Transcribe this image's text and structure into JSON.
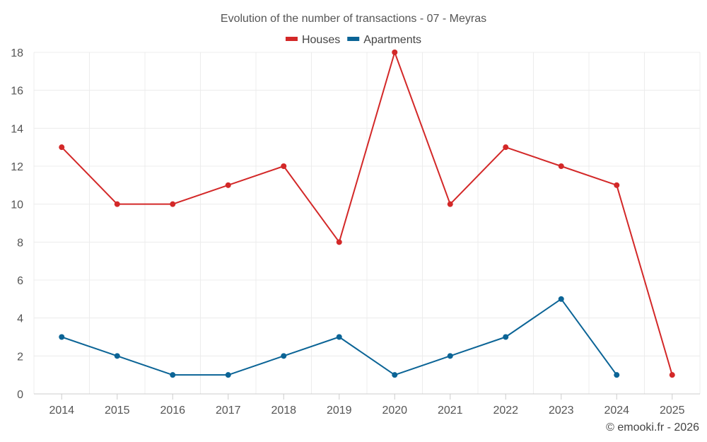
{
  "chart_data": {
    "type": "line",
    "title": "Evolution of the number of transactions - 07 - Meyras",
    "xlabel": "",
    "ylabel": "",
    "categories": [
      "2014",
      "2015",
      "2016",
      "2017",
      "2018",
      "2019",
      "2020",
      "2021",
      "2022",
      "2023",
      "2024",
      "2025"
    ],
    "ylim": [
      0,
      18
    ],
    "yticks": [
      0,
      2,
      4,
      6,
      8,
      10,
      12,
      14,
      16,
      18
    ],
    "grid": true,
    "legend_position": "top-center",
    "series": [
      {
        "name": "Houses",
        "color": "#d32828",
        "values": [
          13,
          10,
          10,
          11,
          12,
          8,
          18,
          10,
          13,
          12,
          11,
          1
        ]
      },
      {
        "name": "Apartments",
        "color": "#0b6496",
        "values": [
          3,
          2,
          1,
          1,
          2,
          3,
          1,
          2,
          3,
          5,
          1,
          null
        ]
      }
    ],
    "credit": "© emooki.fr - 2026"
  }
}
